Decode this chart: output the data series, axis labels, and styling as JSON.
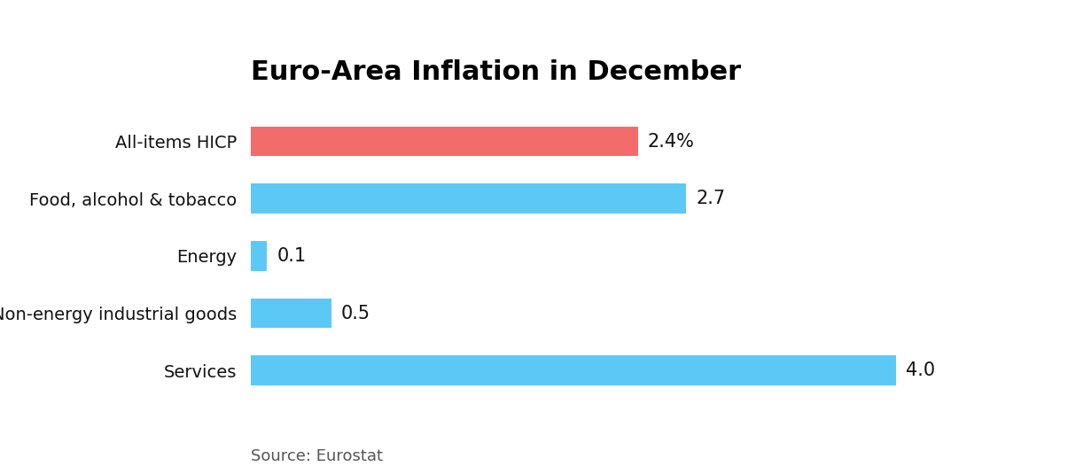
{
  "title": "Euro-Area Inflation in December",
  "categories": [
    "All-items HICP",
    "Food, alcohol & tobacco",
    "Energy",
    "Non-energy industrial goods",
    "Services"
  ],
  "values": [
    2.4,
    2.7,
    0.1,
    0.5,
    4.0
  ],
  "labels": [
    "2.4%",
    "2.7",
    "0.1",
    "0.5",
    "4.0"
  ],
  "colors": [
    "#F26C6C",
    "#5BC8F5",
    "#5BC8F5",
    "#5BC8F5",
    "#5BC8F5"
  ],
  "xlim": [
    0,
    4.6
  ],
  "background_color": "#ffffff",
  "source_text": "Source: Eurostat",
  "title_fontsize": 22,
  "label_fontsize": 15,
  "tick_fontsize": 14,
  "source_fontsize": 13,
  "bar_height": 0.52
}
